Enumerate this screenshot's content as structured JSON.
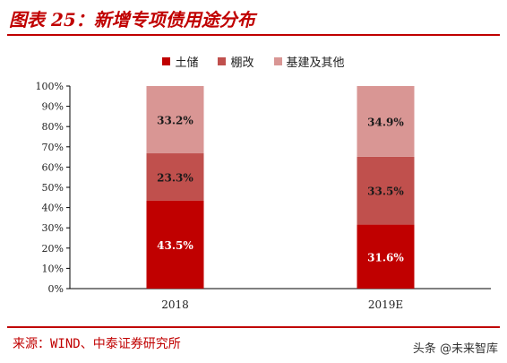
{
  "title": "图表 25：新增专项债用途分布",
  "source": "来源：WIND、中泰证券研究所",
  "watermark": "头条 @未来智库",
  "colors": {
    "accent": "#c00000",
    "land": "#c00000",
    "shanty": "#c0504d",
    "infra": "#d99694"
  },
  "chart_data": {
    "type": "bar",
    "stacked": true,
    "categories": [
      "2018",
      "2019E"
    ],
    "series": [
      {
        "name": "土储",
        "values": [
          43.5,
          31.6
        ],
        "labels": [
          "43.5%",
          "31.6%"
        ],
        "color": "#c00000"
      },
      {
        "name": "棚改",
        "values": [
          23.3,
          33.5
        ],
        "labels": [
          "23.3%",
          "33.5%"
        ],
        "color": "#c0504d"
      },
      {
        "name": "基建及其他",
        "values": [
          33.2,
          34.9
        ],
        "labels": [
          "33.2%",
          "34.9%"
        ],
        "color": "#d99694"
      }
    ],
    "yticks": [
      "0%",
      "10%",
      "20%",
      "30%",
      "40%",
      "50%",
      "60%",
      "70%",
      "80%",
      "90%",
      "100%"
    ],
    "ylim": [
      0,
      100
    ],
    "legend_position": "top-center",
    "grid": false
  }
}
